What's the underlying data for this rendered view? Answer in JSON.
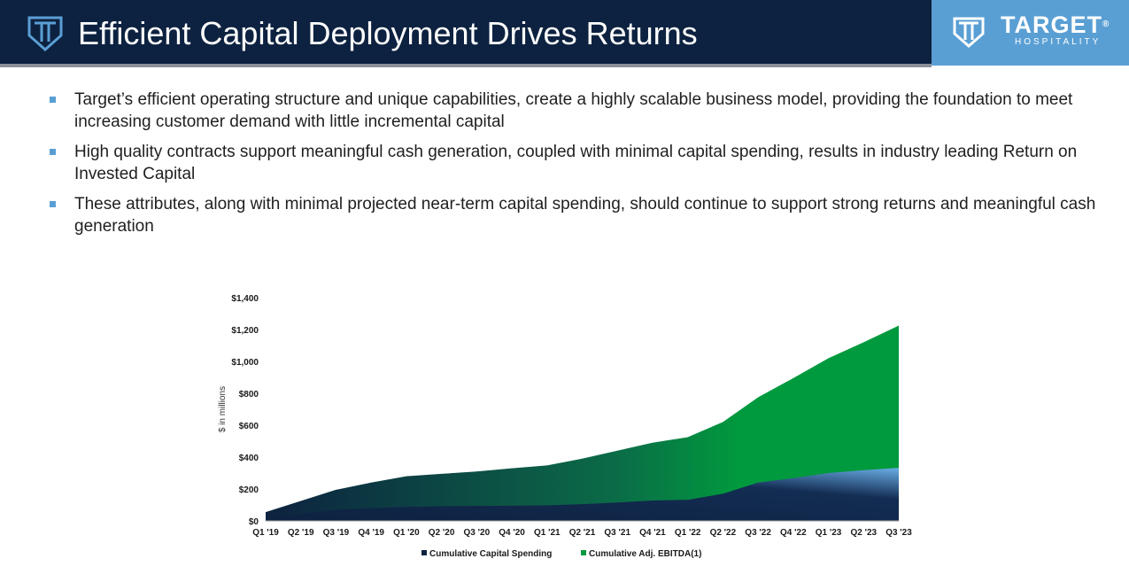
{
  "header": {
    "title": "Efficient Capital Deployment Drives Returns",
    "logo_name": "TARGET",
    "logo_reg": "®",
    "logo_sub": "HOSPITALITY",
    "icon": "target-shield-icon",
    "colors": {
      "bar": "#0d2240",
      "logo_box": "#5a9fd4",
      "accent": "#5a9fd4"
    }
  },
  "bullets": [
    "Target’s efficient operating structure and unique capabilities, create a highly scalable business model, providing the foundation to meet increasing customer demand with little incremental capital",
    "High quality contracts support meaningful cash generation, coupled with minimal capital spending, results in industry leading Return on Invested Capital",
    "These attributes, along with minimal projected near-term capital spending, should continue to support strong returns and meaningful cash generation"
  ],
  "chart_data": {
    "type": "area",
    "title": "",
    "xlabel": "",
    "ylabel": "$ in millions",
    "ylim": [
      0,
      1400
    ],
    "yticks": [
      0,
      200,
      400,
      600,
      800,
      1000,
      1200,
      1400
    ],
    "ytick_labels": [
      "$0",
      "$200",
      "$400",
      "$600",
      "$800",
      "$1,000",
      "$1,200",
      "$1,400"
    ],
    "grid": false,
    "legend_position": "bottom",
    "categories": [
      "Q1 '19",
      "Q2 '19",
      "Q3 '19",
      "Q4 '19",
      "Q1 '20",
      "Q2 '20",
      "Q3 '20",
      "Q4 '20",
      "Q1 '21",
      "Q2 '21",
      "Q3 '21",
      "Q4 '21",
      "Q1 '22",
      "Q2 '22",
      "Q3 '22",
      "Q4 '22",
      "Q1 '23",
      "Q2 '23",
      "Q3 '23"
    ],
    "series": [
      {
        "name": "Cumulative Capital Spending",
        "color": "#0d2240",
        "values": [
          10,
          45,
          70,
          80,
          88,
          92,
          94,
          95,
          97,
          105,
          115,
          128,
          132,
          170,
          240,
          268,
          300,
          318,
          333
        ]
      },
      {
        "name": "Cumulative Adj. EBITDA(1)",
        "color": "#009a3e",
        "values": [
          55,
          125,
          195,
          240,
          280,
          295,
          310,
          330,
          348,
          390,
          440,
          490,
          525,
          620,
          775,
          895,
          1020,
          1120,
          1225
        ]
      }
    ]
  }
}
